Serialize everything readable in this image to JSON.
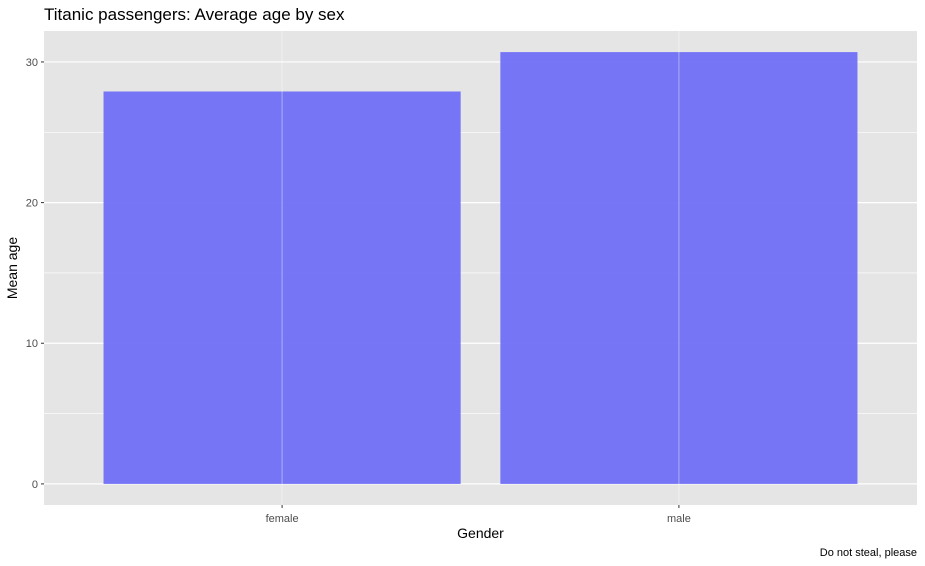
{
  "chart_data": {
    "type": "bar",
    "title": "Titanic passengers: Average age by sex",
    "xlabel": "Gender",
    "ylabel": "Mean age",
    "caption": "Do not steal, please",
    "categories": [
      "female",
      "male"
    ],
    "values": [
      27.9,
      30.7
    ],
    "ylim": [
      -1.5,
      32.2
    ],
    "yticks": [
      0,
      10,
      20,
      30
    ],
    "grid": true,
    "colors": {
      "bar": "#6f6ff5",
      "bar_opacity": 0.95,
      "panel_bg": "#e5e5e5",
      "grid_major": "#ffffff",
      "tick_color": "#333333"
    }
  }
}
